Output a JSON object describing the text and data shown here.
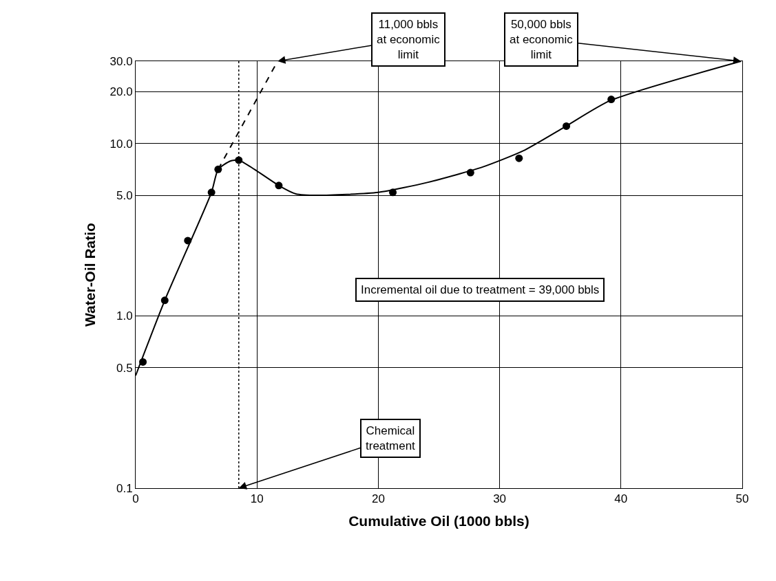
{
  "chart_data": {
    "type": "scatter",
    "xlabel": "Cumulative Oil (1000 bbls)",
    "ylabel": "Water-Oil Ratio",
    "log": "y",
    "xlim": [
      0,
      50
    ],
    "xticks": [
      0,
      10,
      20,
      30,
      40,
      50
    ],
    "ylim": [
      0.1,
      30
    ],
    "yticks": [
      {
        "value": 0.1,
        "label": "0.1"
      },
      {
        "value": 0.5,
        "label": "0.5"
      },
      {
        "value": 1,
        "label": "1.0"
      },
      {
        "value": 5,
        "label": "5.0"
      },
      {
        "value": 10,
        "label": "10.0"
      },
      {
        "value": 20,
        "label": "20.0"
      },
      {
        "value": 30,
        "label": "30.0"
      }
    ],
    "grid": true,
    "series": [
      {
        "marker": "circle",
        "color": "#000000",
        "x": [
          0.6,
          2.4,
          4.3,
          6.25,
          6.8,
          8.5,
          11.8,
          21.2,
          27.6,
          31.6,
          35.5,
          39.2
        ],
        "values": [
          0.54,
          1.23,
          2.73,
          5.2,
          7.07,
          8.0,
          5.7,
          5.2,
          6.77,
          8.2,
          12.6,
          18.0
        ]
      },
      {
        "type": "line",
        "line_style": "solid",
        "color": "#000000",
        "x": [
          0,
          2.4,
          6.25,
          6.8,
          7.8,
          8.5,
          9.8,
          11.8,
          13.2,
          15,
          20,
          24.1,
          28.6,
          32,
          35.4,
          39.1,
          49.9
        ],
        "values": [
          0.45,
          1.23,
          5.2,
          7.07,
          7.9,
          8.0,
          7.07,
          5.7,
          5.1,
          5.0,
          5.2,
          5.95,
          7.3,
          9.1,
          12.5,
          17.7,
          30
        ]
      },
      {
        "type": "line",
        "line_style": "dashed",
        "color": "#000000",
        "x": [
          6.8,
          11.7
        ],
        "values": [
          7.07,
          30
        ]
      }
    ],
    "ref_lines": [
      {
        "axis": "x",
        "value": 8.5,
        "line_style": "dotted",
        "color": "#000000"
      }
    ],
    "annotations": [
      {
        "text": "11,000 bbls\nat economic\nlimit",
        "x": 11.7,
        "y": 30
      },
      {
        "text": "50,000 bbls\nat economic\nlimit",
        "x": 49.9,
        "y": 30
      },
      {
        "text": "Chemical\ntreatment",
        "x": 8.5,
        "y": 0.1
      },
      "Incremental oil due to treatment = 39,000 bbls"
    ]
  }
}
